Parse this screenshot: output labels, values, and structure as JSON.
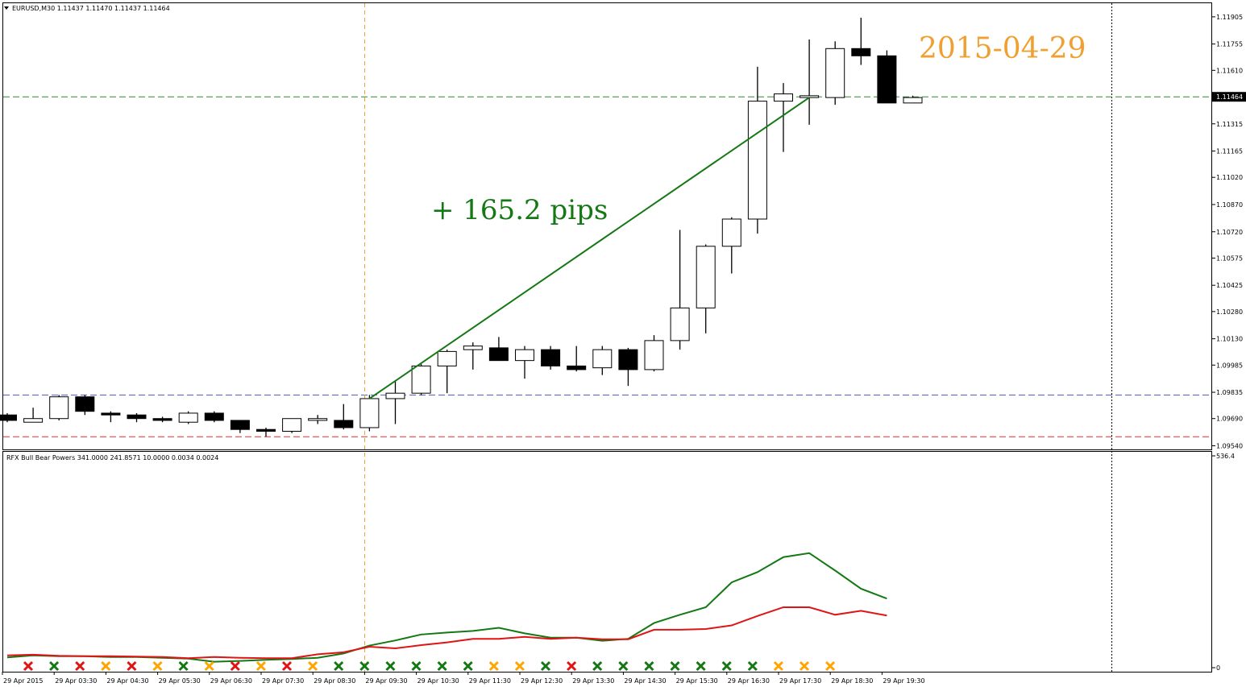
{
  "window": {
    "header": "EURUSD,M30  1.11437 1.11470 1.11437 1.11464",
    "indicator_header": "RFX Bull Bear Powers 341.0000 241.8571 10.0000 0.0034 0.0024"
  },
  "colors": {
    "bull_candle": "#ffffff",
    "bear_candle": "#000000",
    "bull_line": "#147814",
    "bear_line": "#e01414",
    "marker_green": "#147814",
    "marker_red": "#e01414",
    "marker_orange": "#ffa500",
    "annotation_date": "#f0a030",
    "annotation_pips": "#147814",
    "blue_level": "#5060d0",
    "red_level": "#e03030",
    "current_level": "#2e8b2e",
    "vertical_marker": "#f0a030"
  },
  "annotations": {
    "pips_label": "+ 165.2 pips",
    "date_label": "2015-04-29",
    "move_from": 1.098,
    "move_to": 1.1146
  },
  "chart_data": [
    {
      "type": "candlestick",
      "title": "EURUSD,M30",
      "ylim": [
        1.0952,
        1.1198
      ],
      "y_ticks": [
        "1.11905",
        "1.11755",
        "1.11610",
        "1.11464",
        "1.11315",
        "1.11165",
        "1.11020",
        "1.10870",
        "1.10720",
        "1.10575",
        "1.10425",
        "1.10280",
        "1.10130",
        "1.09985",
        "1.09835",
        "1.09690",
        "1.09540"
      ],
      "current_price": "1.11464",
      "levels": {
        "current": 1.11464,
        "blue": 1.0982,
        "red": 1.0959
      },
      "x_ticks": [
        "29 Apr 2015",
        "29 Apr 03:30",
        "29 Apr 04:30",
        "29 Apr 05:30",
        "29 Apr 06:30",
        "29 Apr 07:30",
        "29 Apr 08:30",
        "29 Apr 09:30",
        "29 Apr 10:30",
        "29 Apr 11:30",
        "29 Apr 12:30",
        "29 Apr 13:30",
        "29 Apr 14:30",
        "29 Apr 15:30",
        "29 Apr 16:30",
        "29 Apr 17:30",
        "29 Apr 18:30",
        "29 Apr 19:30"
      ],
      "candles": [
        {
          "o": 1.0971,
          "h": 1.0972,
          "l": 1.0967,
          "c": 1.0968
        },
        {
          "o": 1.0967,
          "h": 1.0975,
          "l": 1.0967,
          "c": 1.0969
        },
        {
          "o": 1.0969,
          "h": 1.0982,
          "l": 1.0968,
          "c": 1.0981
        },
        {
          "o": 1.0981,
          "h": 1.0982,
          "l": 1.0971,
          "c": 1.0973
        },
        {
          "o": 1.0972,
          "h": 1.0973,
          "l": 1.0967,
          "c": 1.0971
        },
        {
          "o": 1.0971,
          "h": 1.0972,
          "l": 1.0967,
          "c": 1.0969
        },
        {
          "o": 1.0969,
          "h": 1.097,
          "l": 1.0967,
          "c": 1.0968
        },
        {
          "o": 1.0967,
          "h": 1.0973,
          "l": 1.0966,
          "c": 1.0972
        },
        {
          "o": 1.0972,
          "h": 1.0973,
          "l": 1.0967,
          "c": 1.0968
        },
        {
          "o": 1.0968,
          "h": 1.0968,
          "l": 1.0961,
          "c": 1.0963
        },
        {
          "o": 1.0963,
          "h": 1.0964,
          "l": 1.0959,
          "c": 1.0962
        },
        {
          "o": 1.0962,
          "h": 1.0969,
          "l": 1.0961,
          "c": 1.0969
        },
        {
          "o": 1.0968,
          "h": 1.0971,
          "l": 1.0966,
          "c": 1.0969
        },
        {
          "o": 1.0968,
          "h": 1.0977,
          "l": 1.0963,
          "c": 1.0964
        },
        {
          "o": 1.0964,
          "h": 1.0982,
          "l": 1.0962,
          "c": 1.098
        },
        {
          "o": 1.098,
          "h": 1.099,
          "l": 1.0966,
          "c": 1.0983
        },
        {
          "o": 1.0983,
          "h": 1.0999,
          "l": 1.0982,
          "c": 1.0998
        },
        {
          "o": 1.0998,
          "h": 1.1007,
          "l": 1.0983,
          "c": 1.1006
        },
        {
          "o": 1.1007,
          "h": 1.1011,
          "l": 1.0996,
          "c": 1.1009
        },
        {
          "o": 1.1008,
          "h": 1.1014,
          "l": 1.1001,
          "c": 1.1001
        },
        {
          "o": 1.1001,
          "h": 1.1009,
          "l": 1.0991,
          "c": 1.1007
        },
        {
          "o": 1.1007,
          "h": 1.1009,
          "l": 1.0996,
          "c": 1.0998
        },
        {
          "o": 1.0998,
          "h": 1.1009,
          "l": 1.0995,
          "c": 1.0996
        },
        {
          "o": 1.0997,
          "h": 1.1009,
          "l": 1.0993,
          "c": 1.1007
        },
        {
          "o": 1.1007,
          "h": 1.1008,
          "l": 1.0987,
          "c": 1.0996
        },
        {
          "o": 1.0996,
          "h": 1.1015,
          "l": 1.0995,
          "c": 1.1012
        },
        {
          "o": 1.1012,
          "h": 1.1073,
          "l": 1.1007,
          "c": 1.103
        },
        {
          "o": 1.103,
          "h": 1.1065,
          "l": 1.1016,
          "c": 1.1064
        },
        {
          "o": 1.1064,
          "h": 1.108,
          "l": 1.1049,
          "c": 1.1079
        },
        {
          "o": 1.1079,
          "h": 1.1163,
          "l": 1.1071,
          "c": 1.1144
        },
        {
          "o": 1.1144,
          "h": 1.1154,
          "l": 1.1116,
          "c": 1.1148
        },
        {
          "o": 1.1146,
          "h": 1.1178,
          "l": 1.1131,
          "c": 1.1147
        },
        {
          "o": 1.1146,
          "h": 1.1177,
          "l": 1.1142,
          "c": 1.1173
        },
        {
          "o": 1.1173,
          "h": 1.119,
          "l": 1.1164,
          "c": 1.1169
        },
        {
          "o": 1.1169,
          "h": 1.1172,
          "l": 1.1143,
          "c": 1.1143
        },
        {
          "o": 1.1143,
          "h": 1.1147,
          "l": 1.1143,
          "c": 1.1146
        }
      ]
    },
    {
      "type": "line",
      "title": "RFX Bull Bear Powers",
      "ylim": [
        0,
        536.4
      ],
      "y_ticks": [
        "536.4",
        "0"
      ],
      "series": [
        {
          "name": "bull",
          "color": "#147814",
          "values": [
            26,
            31,
            29,
            29,
            27,
            27,
            25,
            23,
            15,
            17,
            20,
            22,
            25,
            36,
            56,
            69,
            84,
            89,
            93,
            101,
            87,
            76,
            76,
            68,
            73,
            113,
            134,
            153,
            216,
            242,
            280,
            290,
            246,
            200,
            175
          ]
        },
        {
          "name": "bear",
          "color": "#e01414",
          "values": [
            31,
            33,
            30,
            29,
            29,
            28,
            27,
            24,
            27,
            25,
            24,
            24,
            34,
            39,
            53,
            49,
            57,
            64,
            73,
            73,
            78,
            73,
            76,
            72,
            72,
            96,
            96,
            98,
            107,
            131,
            153,
            153,
            134,
            144,
            132
          ]
        }
      ],
      "markers": [
        "red",
        "green",
        "red",
        "orange",
        "red",
        "orange",
        "green",
        "orange",
        "red",
        "orange",
        "red",
        "orange",
        "green",
        "green",
        "green",
        "green",
        "green",
        "green",
        "orange",
        "orange",
        "green",
        "red",
        "green",
        "green",
        "green",
        "green",
        "green",
        "green",
        "green",
        "orange",
        "orange",
        "orange"
      ]
    }
  ]
}
